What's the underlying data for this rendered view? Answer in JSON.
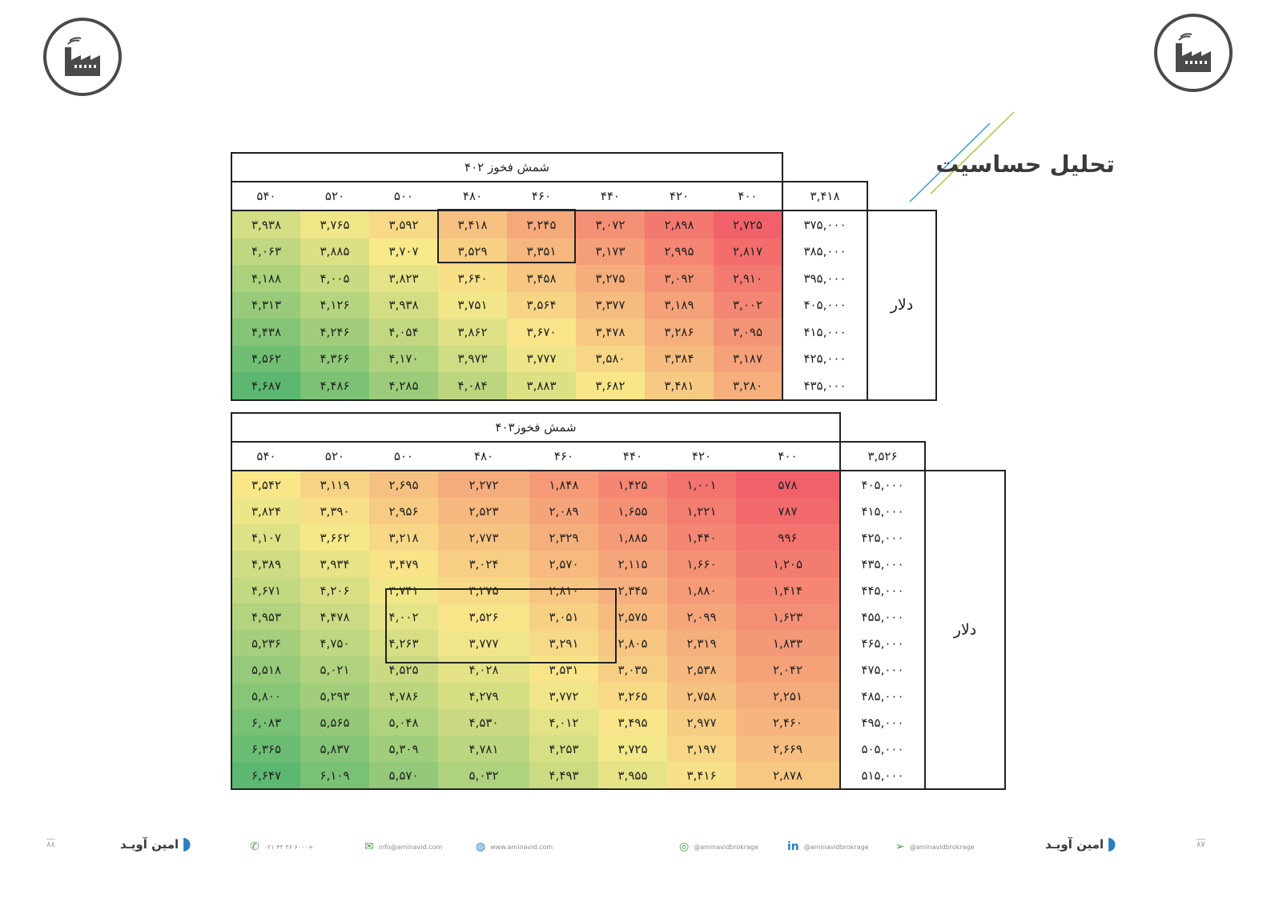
{
  "page_title": "تحلیل حساسیت",
  "table1": {
    "title": "شمش فخوز ۴۰۲",
    "base_value": "۳,۴۱۸",
    "axis_label": "دلار",
    "columns": [
      "۵۴۰",
      "۵۲۰",
      "۵۰۰",
      "۴۸۰",
      "۴۶۰",
      "۴۴۰",
      "۴۲۰",
      "۴۰۰"
    ],
    "rows": [
      {
        "label": "۳۷۵,۰۰۰",
        "values": [
          "۳,۹۳۸",
          "۳,۷۶۵",
          "۳,۵۹۲",
          "۳,۴۱۸",
          "۳,۲۴۵",
          "۳,۰۷۲",
          "۲,۸۹۸",
          "۲,۷۲۵"
        ]
      },
      {
        "label": "۳۸۵,۰۰۰",
        "values": [
          "۴,۰۶۳",
          "۳,۸۸۵",
          "۳,۷۰۷",
          "۳,۵۲۹",
          "۳,۳۵۱",
          "۳,۱۷۳",
          "۲,۹۹۵",
          "۲,۸۱۷"
        ]
      },
      {
        "label": "۳۹۵,۰۰۰",
        "values": [
          "۴,۱۸۸",
          "۴,۰۰۵",
          "۳,۸۲۳",
          "۳,۶۴۰",
          "۳,۴۵۸",
          "۳,۲۷۵",
          "۳,۰۹۲",
          "۲,۹۱۰"
        ]
      },
      {
        "label": "۴۰۵,۰۰۰",
        "values": [
          "۴,۳۱۳",
          "۴,۱۲۶",
          "۳,۹۳۸",
          "۳,۷۵۱",
          "۳,۵۶۴",
          "۳,۳۷۷",
          "۳,۱۸۹",
          "۳,۰۰۲"
        ]
      },
      {
        "label": "۴۱۵,۰۰۰",
        "values": [
          "۴,۴۳۸",
          "۴,۲۴۶",
          "۴,۰۵۴",
          "۳,۸۶۲",
          "۳,۶۷۰",
          "۳,۴۷۸",
          "۳,۲۸۶",
          "۳,۰۹۵"
        ]
      },
      {
        "label": "۴۲۵,۰۰۰",
        "values": [
          "۴,۵۶۲",
          "۴,۳۶۶",
          "۴,۱۷۰",
          "۳,۹۷۳",
          "۳,۷۷۷",
          "۳,۵۸۰",
          "۳,۳۸۴",
          "۳,۱۸۷"
        ]
      },
      {
        "label": "۴۳۵,۰۰۰",
        "values": [
          "۴,۶۸۷",
          "۴,۴۸۶",
          "۴,۲۸۵",
          "۴,۰۸۴",
          "۳,۸۸۳",
          "۳,۶۸۲",
          "۳,۴۸۱",
          "۳,۲۸۰"
        ]
      }
    ],
    "numeric": [
      [
        3938,
        3765,
        3592,
        3418,
        3245,
        3072,
        2898,
        2725
      ],
      [
        4063,
        3885,
        3707,
        3529,
        3351,
        3173,
        2995,
        2817
      ],
      [
        4188,
        4005,
        3823,
        3640,
        3458,
        3275,
        3092,
        2910
      ],
      [
        4313,
        4126,
        3938,
        3751,
        3564,
        3377,
        3189,
        3002
      ],
      [
        4438,
        4246,
        4054,
        3862,
        3670,
        3478,
        3286,
        3095
      ],
      [
        4562,
        4366,
        4170,
        3973,
        3777,
        3580,
        3384,
        3187
      ],
      [
        4687,
        4486,
        4285,
        4084,
        3883,
        3682,
        3481,
        3280
      ]
    ]
  },
  "table2": {
    "title": "شمش فخوز۴۰۳",
    "base_value": "۳,۵۲۶",
    "axis_label": "دلار",
    "columns": [
      "۵۴۰",
      "۵۲۰",
      "۵۰۰",
      "۴۸۰",
      "۴۶۰",
      "۴۴۰",
      "۴۲۰",
      "۴۰۰"
    ],
    "rows": [
      {
        "label": "۴۰۵,۰۰۰",
        "values": [
          "۳,۵۴۲",
          "۳,۱۱۹",
          "۲,۶۹۵",
          "۲,۲۷۲",
          "۱,۸۴۸",
          "۱,۴۲۵",
          "۱,۰۰۱",
          "۵۷۸"
        ]
      },
      {
        "label": "۴۱۵,۰۰۰",
        "values": [
          "۳,۸۲۴",
          "۳,۳۹۰",
          "۲,۹۵۶",
          "۲,۵۲۳",
          "۲,۰۸۹",
          "۱,۶۵۵",
          "۱,۲۲۱",
          "۷۸۷"
        ]
      },
      {
        "label": "۴۲۵,۰۰۰",
        "values": [
          "۴,۱۰۷",
          "۳,۶۶۲",
          "۳,۲۱۸",
          "۲,۷۷۳",
          "۲,۳۲۹",
          "۱,۸۸۵",
          "۱,۴۴۰",
          "۹۹۶"
        ]
      },
      {
        "label": "۴۳۵,۰۰۰",
        "values": [
          "۴,۳۸۹",
          "۳,۹۳۴",
          "۳,۴۷۹",
          "۳,۰۲۴",
          "۲,۵۷۰",
          "۲,۱۱۵",
          "۱,۶۶۰",
          "۱,۲۰۵"
        ]
      },
      {
        "label": "۴۴۵,۰۰۰",
        "values": [
          "۴,۶۷۱",
          "۴,۲۰۶",
          "۳,۷۴۱",
          "۳,۲۷۵",
          "۲,۸۱۰",
          "۲,۳۴۵",
          "۱,۸۸۰",
          "۱,۴۱۴"
        ]
      },
      {
        "label": "۴۵۵,۰۰۰",
        "values": [
          "۴,۹۵۳",
          "۴,۴۷۸",
          "۴,۰۰۲",
          "۳,۵۲۶",
          "۳,۰۵۱",
          "۲,۵۷۵",
          "۲,۰۹۹",
          "۱,۶۲۳"
        ]
      },
      {
        "label": "۴۶۵,۰۰۰",
        "values": [
          "۵,۲۳۶",
          "۴,۷۵۰",
          "۴,۲۶۳",
          "۳,۷۷۷",
          "۳,۲۹۱",
          "۲,۸۰۵",
          "۲,۳۱۹",
          "۱,۸۳۳"
        ]
      },
      {
        "label": "۴۷۵,۰۰۰",
        "values": [
          "۵,۵۱۸",
          "۵,۰۲۱",
          "۴,۵۲۵",
          "۴,۰۲۸",
          "۳,۵۳۱",
          "۳,۰۳۵",
          "۲,۵۳۸",
          "۲,۰۴۲"
        ]
      },
      {
        "label": "۴۸۵,۰۰۰",
        "values": [
          "۵,۸۰۰",
          "۵,۲۹۳",
          "۴,۷۸۶",
          "۴,۲۷۹",
          "۳,۷۷۲",
          "۳,۲۶۵",
          "۲,۷۵۸",
          "۲,۲۵۱"
        ]
      },
      {
        "label": "۴۹۵,۰۰۰",
        "values": [
          "۶,۰۸۳",
          "۵,۵۶۵",
          "۵,۰۴۸",
          "۴,۵۳۰",
          "۴,۰۱۲",
          "۳,۴۹۵",
          "۲,۹۷۷",
          "۲,۴۶۰"
        ]
      },
      {
        "label": "۵۰۵,۰۰۰",
        "values": [
          "۶,۳۶۵",
          "۵,۸۳۷",
          "۵,۳۰۹",
          "۴,۷۸۱",
          "۴,۲۵۳",
          "۳,۷۲۵",
          "۳,۱۹۷",
          "۲,۶۶۹"
        ]
      },
      {
        "label": "۵۱۵,۰۰۰",
        "values": [
          "۶,۶۴۷",
          "۶,۱۰۹",
          "۵,۵۷۰",
          "۵,۰۳۲",
          "۴,۴۹۳",
          "۳,۹۵۵",
          "۳,۴۱۶",
          "۲,۸۷۸"
        ]
      }
    ],
    "numeric": [
      [
        3542,
        3119,
        2695,
        2272,
        1848,
        1425,
        1001,
        578
      ],
      [
        3824,
        3390,
        2956,
        2523,
        2089,
        1655,
        1221,
        787
      ],
      [
        4107,
        3662,
        3218,
        2773,
        2329,
        1885,
        1440,
        996
      ],
      [
        4389,
        3934,
        3479,
        3024,
        2570,
        2115,
        1660,
        1205
      ],
      [
        4671,
        4206,
        3741,
        3275,
        2810,
        2345,
        1880,
        1414
      ],
      [
        4953,
        4478,
        4002,
        3526,
        3051,
        2575,
        2099,
        1623
      ],
      [
        5236,
        4750,
        4263,
        3777,
        3291,
        2805,
        2319,
        1833
      ],
      [
        5518,
        5021,
        4525,
        4028,
        3531,
        3035,
        2538,
        2042
      ],
      [
        5800,
        5293,
        4786,
        4279,
        3772,
        3265,
        2758,
        2251
      ],
      [
        6083,
        5565,
        5048,
        4530,
        4012,
        3495,
        2977,
        2460
      ],
      [
        6365,
        5837,
        5309,
        4781,
        4253,
        3725,
        3197,
        2669
      ],
      [
        6647,
        6109,
        5570,
        5032,
        4493,
        3955,
        3416,
        2878
      ]
    ]
  },
  "footer_left": {
    "page_number": "۸۸",
    "brand": "امین آویـد",
    "phone": "۰۲۱ ۴۲ ۳۶ ۶۰۰۰+",
    "email": "info@aminavid.com",
    "website": "www.aminavid.com"
  },
  "footer_right": {
    "page_number": "۸۷",
    "brand": "امین آویـد",
    "instagram": "@aminavidbrokrage",
    "linkedin": "@aminavidbrokrage",
    "telegram": "@aminavidbrokrage"
  },
  "colors": {
    "low": "#f2606a",
    "mid": "#f8e98a",
    "high": "#5cb870"
  }
}
